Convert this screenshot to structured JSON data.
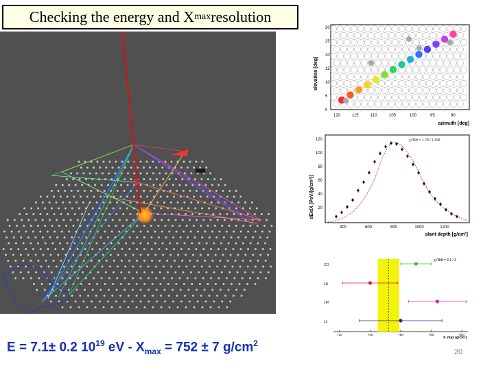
{
  "slide": {
    "title_main": "Checking the energy and X",
    "title_sub": "max",
    "title_end": " resolution",
    "page_number": "20"
  },
  "formula": {
    "e_prefix": "E = 7.1± 0.2 10",
    "e_exp": "19",
    "e_unit": " eV   - ",
    "x_sym": "X",
    "x_sub": "max",
    "x_val": " = 752 ± 7 g/cm",
    "x_exp": "2"
  },
  "footprint_plot": {
    "ylabel": "elevation [deg]",
    "xlabel": "azimuth [deg]",
    "y_ticks": [
      "30",
      "25",
      "20",
      "15",
      "10",
      "5",
      "0"
    ],
    "x_ticks": [
      "120",
      "115",
      "110",
      "105",
      "100",
      "95",
      "90"
    ]
  },
  "profile_plot": {
    "ylabel": "dE/dX [PeV/(g/cm²)]",
    "xlabel": "slant depth [g/cm²]",
    "legend": "χ²/Ndf = 1.78 / 1.308",
    "y_ticks": [
      "120",
      "100",
      "80",
      "60",
      "40",
      "20"
    ],
    "x_ticks": [
      "400",
      "600",
      "800",
      "1000",
      "1200"
    ]
  },
  "chart_data": {
    "type": "scatter",
    "title": "",
    "xlabel": "X_max [g/cm²]",
    "legend_text": "χ²/Ndf = 3.1 / 3",
    "categories": [
      "CO",
      "LA",
      "LM",
      "LL"
    ],
    "series": [
      {
        "name": "CO",
        "x": 770,
        "xerr": 10,
        "color": "#3cb84a"
      },
      {
        "name": "LA",
        "x": 740,
        "xerr": 18,
        "color": "#d82020"
      },
      {
        "name": "LM",
        "x": 784,
        "xerr": 19,
        "color": "#d024c8"
      },
      {
        "name": "LL",
        "x": 760,
        "xerr": 27,
        "color": "#1a2a90"
      }
    ],
    "band": {
      "center": 752,
      "half_width": 7
    },
    "x_ticks": [
      "720",
      "740",
      "760",
      "780",
      "800"
    ],
    "xlim": [
      716,
      804
    ]
  }
}
